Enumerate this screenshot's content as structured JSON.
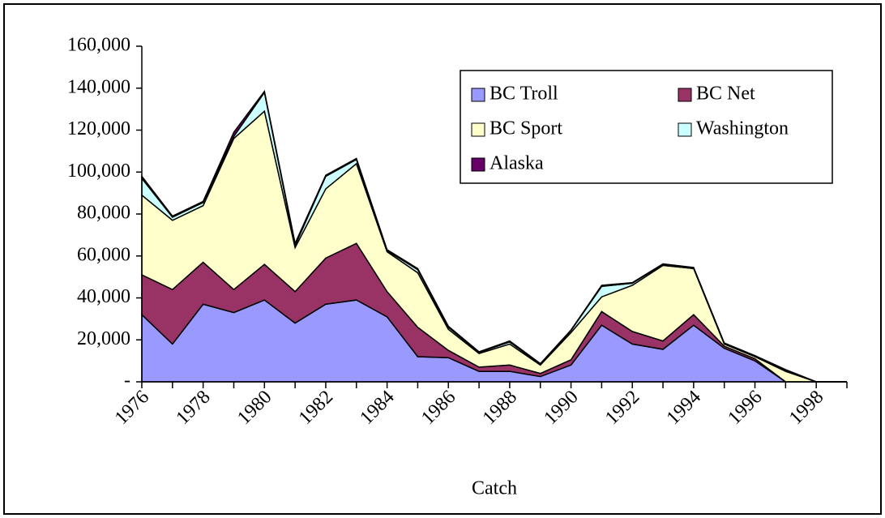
{
  "chart_data": {
    "type": "stacked_area",
    "x_label": "Catch",
    "categories": [
      "1976",
      null,
      "1978",
      null,
      "1980",
      null,
      "1982",
      null,
      "1984",
      null,
      "1986",
      null,
      "1988",
      null,
      "1990",
      null,
      "1992",
      null,
      "1994",
      null,
      "1996",
      null,
      "1998",
      null
    ],
    "series": [
      {
        "name": "BC Troll",
        "color": "#9999ff",
        "values": [
          32000,
          18000,
          37000,
          33000,
          39000,
          28000,
          37000,
          39000,
          31000,
          12000,
          11500,
          5000,
          5000,
          2500,
          8000,
          27000,
          18000,
          15500,
          27000,
          16000,
          10000,
          0,
          0,
          0
        ]
      },
      {
        "name": "BC Net",
        "color": "#993366",
        "values": [
          19000,
          26000,
          20000,
          11000,
          17000,
          15000,
          22000,
          27000,
          12000,
          14000,
          3500,
          2000,
          3000,
          1500,
          2500,
          6500,
          6000,
          4000,
          5000,
          1000,
          1000,
          0,
          0,
          0
        ]
      },
      {
        "name": "BC Sport",
        "color": "#ffffcc",
        "values": [
          38000,
          33000,
          27000,
          72000,
          73000,
          21000,
          33000,
          38000,
          19000,
          26000,
          10000,
          6500,
          10000,
          4000,
          13000,
          7000,
          22000,
          36000,
          22000,
          1000,
          1000,
          5000,
          0,
          0
        ]
      },
      {
        "name": "Washington",
        "color": "#ccffff",
        "values": [
          8000,
          1500,
          1500,
          1000,
          9000,
          1000,
          6000,
          2000,
          500,
          1500,
          1000,
          500,
          1000,
          500,
          1000,
          5000,
          1000,
          500,
          300,
          300,
          300,
          300,
          0,
          0
        ]
      },
      {
        "name": "Alaska",
        "color": "#660066",
        "values": [
          1000,
          500,
          500,
          2000,
          500,
          1000,
          500,
          500,
          500,
          500,
          500,
          300,
          500,
          200,
          200,
          500,
          300,
          200,
          200,
          200,
          200,
          500,
          0,
          0
        ]
      }
    ],
    "ylim": [
      0,
      160000
    ],
    "yticks": [
      {
        "value": 0,
        "label": "-"
      },
      {
        "value": 20000,
        "label": "20,000"
      },
      {
        "value": 40000,
        "label": "40,000"
      },
      {
        "value": 60000,
        "label": "60,000"
      },
      {
        "value": 80000,
        "label": "80,000"
      },
      {
        "value": 100000,
        "label": "100,000"
      },
      {
        "value": 120000,
        "label": "120,000"
      },
      {
        "value": 140000,
        "label": "140,000"
      },
      {
        "value": 160000,
        "label": "160,000"
      }
    ],
    "legend": "upper right"
  }
}
